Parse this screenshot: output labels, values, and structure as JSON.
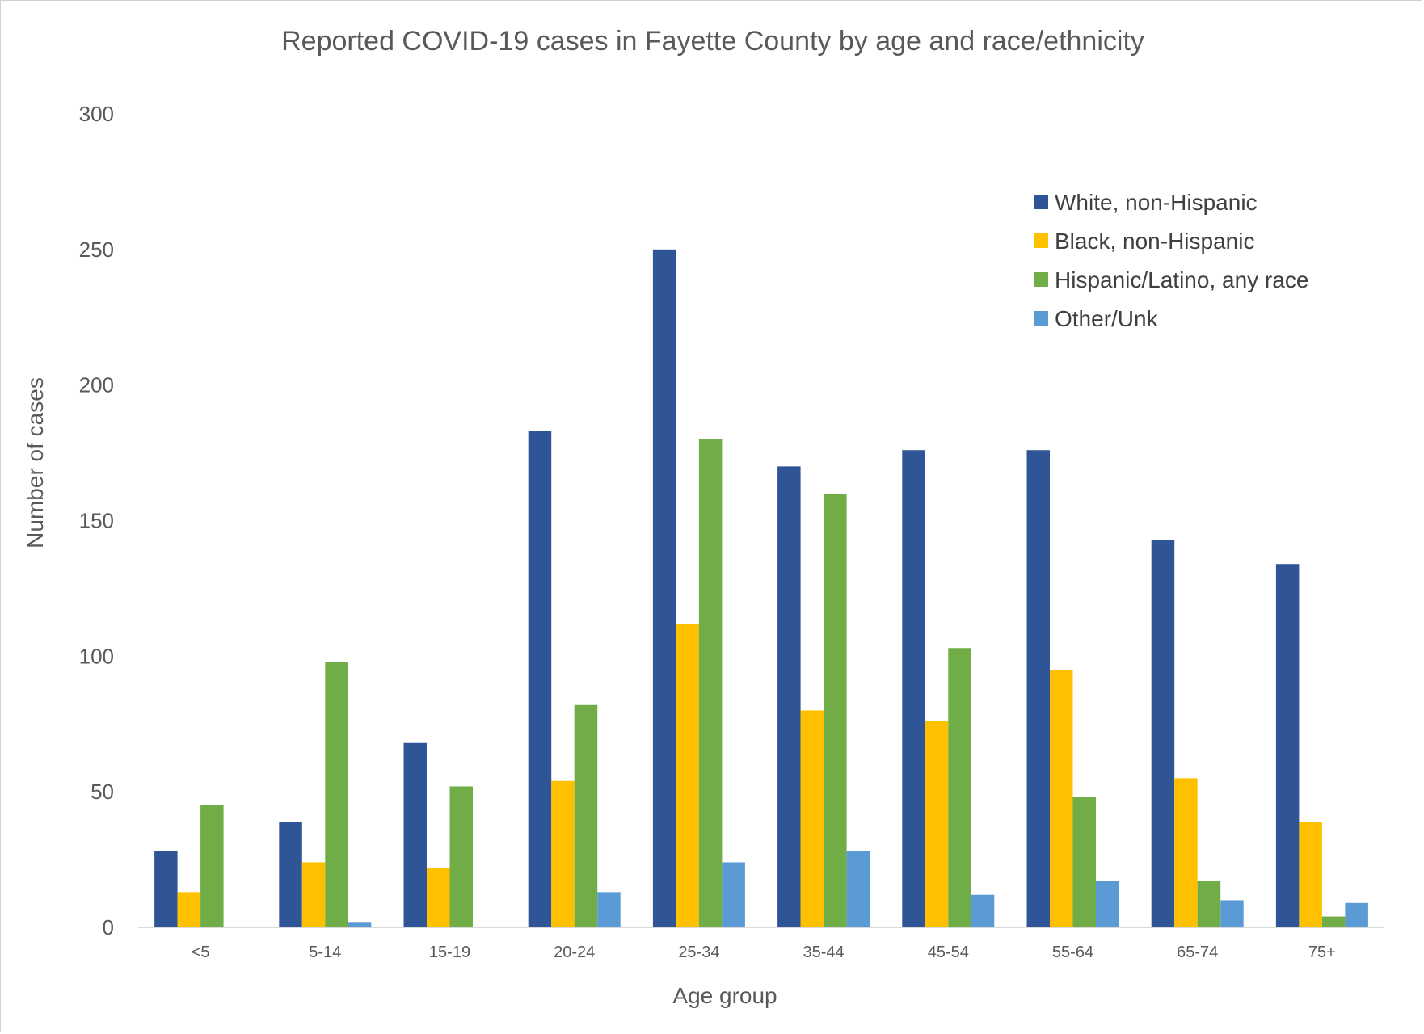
{
  "chart_data": {
    "type": "bar",
    "title": "Reported COVID-19 cases in Fayette County by age and race/ethnicity",
    "xlabel": "Age group",
    "ylabel": "Number of cases",
    "ylim": [
      0,
      300
    ],
    "yticks": [
      0,
      50,
      100,
      150,
      200,
      250,
      300
    ],
    "grid": false,
    "legend_position": "top-right",
    "categories": [
      "<5",
      "5-14",
      "15-19",
      "20-24",
      "25-34",
      "35-44",
      "45-54",
      "55-64",
      "65-74",
      "75+"
    ],
    "series": [
      {
        "name": "White, non-Hispanic",
        "color": "#2F5597",
        "values": [
          28,
          39,
          68,
          183,
          250,
          170,
          176,
          176,
          143,
          134
        ]
      },
      {
        "name": "Black, non-Hispanic",
        "color": "#FFC000",
        "values": [
          13,
          24,
          22,
          54,
          112,
          80,
          76,
          95,
          55,
          39
        ]
      },
      {
        "name": "Hispanic/Latino, any race",
        "color": "#70AD47",
        "values": [
          45,
          98,
          52,
          82,
          180,
          160,
          103,
          48,
          17,
          4
        ]
      },
      {
        "name": "Other/Unk",
        "color": "#5B9BD5",
        "values": [
          0,
          2,
          0,
          13,
          24,
          28,
          12,
          17,
          10,
          9
        ]
      }
    ]
  }
}
